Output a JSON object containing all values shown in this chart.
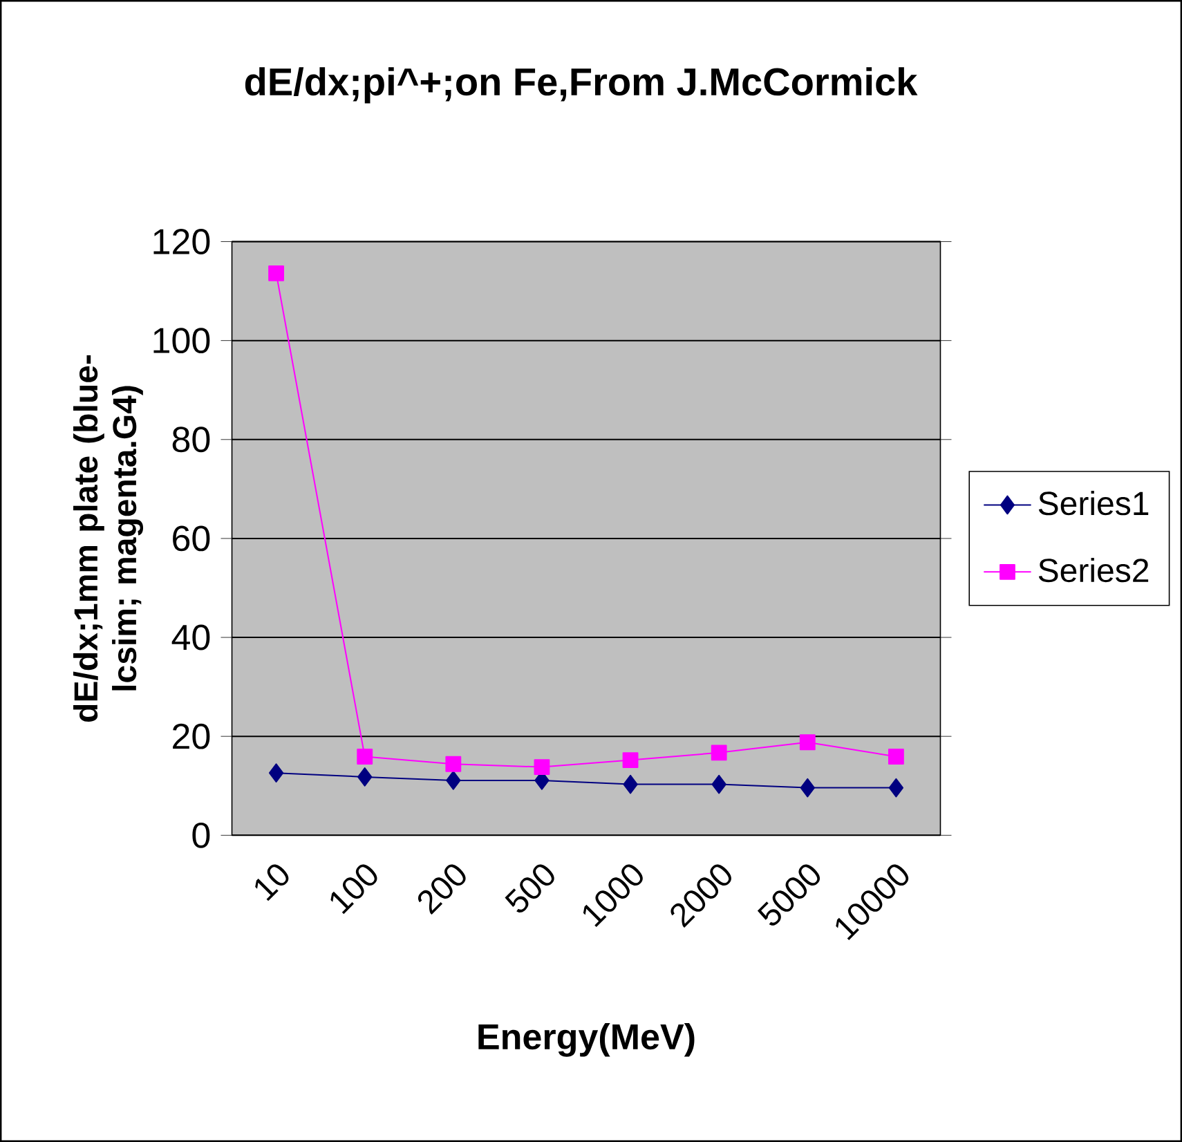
{
  "chart_data": {
    "type": "line",
    "title": "dE/dx;pi^+;on Fe,From J.McCormick",
    "xlabel": "Energy(MeV)",
    "ylabel": "dE/dx;1mm plate (blue-lcsim; magenta.G4)",
    "categories": [
      "10",
      "100",
      "200",
      "500",
      "1000",
      "2000",
      "5000",
      "10000"
    ],
    "series": [
      {
        "name": "Series1",
        "color": "#000080",
        "marker": "diamond",
        "values": [
          12.6,
          11.8,
          11.1,
          11.1,
          10.3,
          10.3,
          9.6,
          9.6
        ]
      },
      {
        "name": "Series2",
        "color": "#ff00ff",
        "marker": "square",
        "values": [
          113.6,
          15.9,
          14.4,
          13.8,
          15.2,
          16.7,
          18.8,
          15.9
        ]
      }
    ],
    "ylim": [
      0,
      120
    ],
    "yticks": [
      0,
      20,
      40,
      60,
      80,
      100,
      120
    ],
    "grid": "y",
    "legend": "right"
  }
}
